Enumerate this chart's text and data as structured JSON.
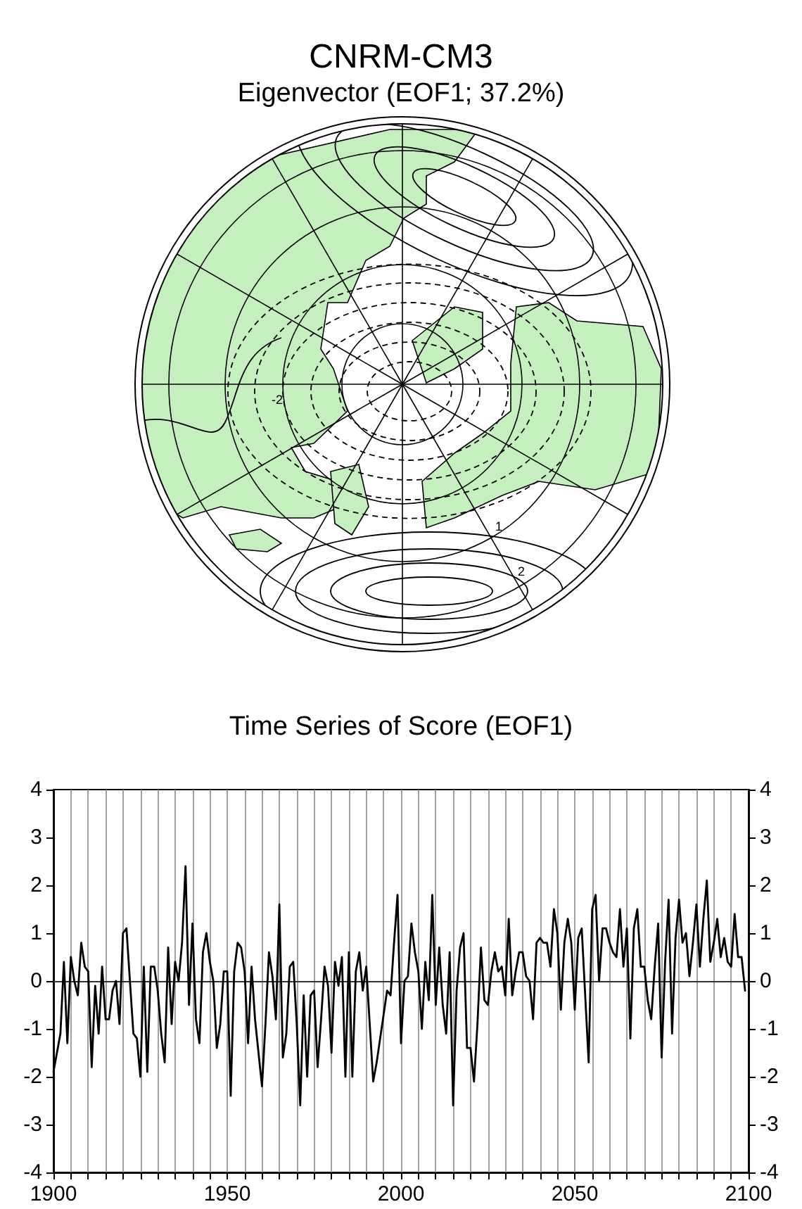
{
  "chart_data": [
    {
      "type": "other",
      "title": "CNRM-CM3",
      "subtitle": "Eigenvector (EOF1; 37.2%)",
      "annotations": [
        "-2",
        "1",
        "2"
      ]
    },
    {
      "type": "line",
      "title": "Time Series of Score (EOF1)",
      "x": [
        1900,
        1901,
        1902,
        1903,
        1904,
        1905,
        1906,
        1907,
        1908,
        1909,
        1910,
        1911,
        1912,
        1913,
        1914,
        1915,
        1916,
        1917,
        1918,
        1919,
        1920,
        1921,
        1922,
        1923,
        1924,
        1925,
        1926,
        1927,
        1928,
        1929,
        1930,
        1931,
        1932,
        1933,
        1934,
        1935,
        1936,
        1937,
        1938,
        1939,
        1940,
        1941,
        1942,
        1943,
        1944,
        1945,
        1946,
        1947,
        1948,
        1949,
        1950,
        1951,
        1952,
        1953,
        1954,
        1955,
        1956,
        1957,
        1958,
        1959,
        1960,
        1961,
        1962,
        1963,
        1964,
        1965,
        1966,
        1967,
        1968,
        1969,
        1970,
        1971,
        1972,
        1973,
        1974,
        1975,
        1976,
        1977,
        1978,
        1979,
        1980,
        1981,
        1982,
        1983,
        1984,
        1985,
        1986,
        1987,
        1988,
        1989,
        1990,
        1991,
        1992,
        1993,
        1994,
        1995,
        1996,
        1997,
        1998,
        1999,
        2000,
        2001,
        2002,
        2003,
        2004,
        2005,
        2006,
        2007,
        2008,
        2009,
        2010,
        2011,
        2012,
        2013,
        2014,
        2015,
        2016,
        2017,
        2018,
        2019,
        2020,
        2021,
        2022,
        2023,
        2024,
        2025,
        2026,
        2027,
        2028,
        2029,
        2030,
        2031,
        2032,
        2033,
        2034,
        2035,
        2036,
        2037,
        2038,
        2039,
        2040,
        2041,
        2042,
        2043,
        2044,
        2045,
        2046,
        2047,
        2048,
        2049,
        2050,
        2051,
        2052,
        2053,
        2054,
        2055,
        2056,
        2057,
        2058,
        2059,
        2060,
        2061,
        2062,
        2063,
        2064,
        2065,
        2066,
        2067,
        2068,
        2069,
        2070,
        2071,
        2072,
        2073,
        2074,
        2075,
        2076,
        2077,
        2078,
        2079,
        2080,
        2081,
        2082,
        2083,
        2084,
        2085,
        2086,
        2087,
        2088,
        2089,
        2090,
        2091,
        2092,
        2093,
        2094,
        2095,
        2096,
        2097,
        2098,
        2099
      ],
      "series": [
        {
          "color": "#000000",
          "values": [
            -1.9,
            -1.5,
            -1.1,
            0.4,
            -1.3,
            0.5,
            0,
            -0.3,
            0.8,
            0.3,
            0.2,
            -1.8,
            -0.1,
            -1.1,
            0.3,
            -0.8,
            -0.8,
            -0.2,
            0,
            -0.9,
            1.0,
            1.1,
            0,
            -1.1,
            -1.2,
            -2.0,
            0.3,
            -1.9,
            0.3,
            0.3,
            -0.2,
            -1.1,
            -1.7,
            0.7,
            -0.9,
            0.4,
            0,
            0.8,
            2.4,
            -0.5,
            1.2,
            -0.8,
            -1.3,
            0.6,
            1.0,
            0.4,
            0,
            -1.4,
            -0.9,
            0.2,
            0.2,
            -2.4,
            0.2,
            0.8,
            0.7,
            0.2,
            -1.3,
            0.3,
            -0.8,
            -1.5,
            -2.2,
            -0.9,
            0.6,
            0.1,
            -0.8,
            1.6,
            -1.6,
            -1.1,
            0.3,
            0.4,
            -0.9,
            -2.6,
            -0.3,
            -2.0,
            -0.3,
            -0.2,
            -1.8,
            -0.8,
            0.3,
            -0.1,
            -1.5,
            0.4,
            -0.1,
            0.5,
            -2.0,
            0.6,
            -2.0,
            0.2,
            0.6,
            -0.2,
            0.3,
            -0.9,
            -2.1,
            -1.7,
            -1.2,
            -0.7,
            -0.2,
            -0.3,
            0.8,
            1.8,
            -1.3,
            0,
            0.1,
            1.2,
            0.6,
            0.2,
            -1.0,
            0.4,
            -0.4,
            1.8,
            -0.5,
            0.7,
            -0.5,
            -1.1,
            0.6,
            -2.6,
            -0.2,
            0.7,
            1.0,
            -1.4,
            -1.4,
            -2.1,
            -0.9,
            0.7,
            -0.4,
            -0.5,
            0.2,
            0.6,
            0.2,
            0.3,
            -0.3,
            1.3,
            -0.3,
            0.2,
            0.6,
            0.6,
            0.1,
            0,
            -0.8,
            0.8,
            0.9,
            0.8,
            0.8,
            0.3,
            1.5,
            1.0,
            -0.6,
            0.8,
            1.3,
            0.8,
            -0.6,
            0.9,
            1.1,
            -0.3,
            -1.7,
            1.5,
            1.8,
            0,
            1.1,
            1.1,
            0.8,
            0.6,
            0.5,
            1.5,
            0.3,
            1.1,
            -1.2,
            1.1,
            1.5,
            0.3,
            0.3,
            -0.4,
            -0.8,
            0.3,
            1.2,
            -1.6,
            0.4,
            1.7,
            -1.1,
            0.9,
            1.7,
            0.8,
            1.0,
            0.1,
            0.8,
            1.6,
            0.3,
            1.3,
            2.1,
            0.4,
            0.8,
            1.3,
            0.5,
            0.9,
            0.4,
            0.3,
            1.4,
            0.5,
            0.5,
            -0.2
          ]
        }
      ],
      "xlim": [
        1900,
        2100
      ],
      "xticks": [
        1900,
        {
          "value": 1905,
          "label": null
        },
        {
          "value": 1910,
          "label": null
        },
        {
          "value": 1915,
          "label": null
        },
        {
          "value": 1920,
          "label": null
        },
        {
          "value": 1925,
          "label": null
        },
        {
          "value": 1930,
          "label": null
        },
        {
          "value": 1935,
          "label": null
        },
        {
          "value": 1940,
          "label": null
        },
        {
          "value": 1945,
          "label": null
        },
        1950,
        {
          "value": 1955,
          "label": null
        },
        {
          "value": 1960,
          "label": null
        },
        {
          "value": 1965,
          "label": null
        },
        {
          "value": 1970,
          "label": null
        },
        {
          "value": 1975,
          "label": null
        },
        {
          "value": 1980,
          "label": null
        },
        {
          "value": 1985,
          "label": null
        },
        {
          "value": 1990,
          "label": null
        },
        {
          "value": 1995,
          "label": null
        },
        2000,
        {
          "value": 2005,
          "label": null
        },
        {
          "value": 2010,
          "label": null
        },
        {
          "value": 2015,
          "label": null
        },
        {
          "value": 2020,
          "label": null
        },
        {
          "value": 2025,
          "label": null
        },
        {
          "value": 2030,
          "label": null
        },
        {
          "value": 2035,
          "label": null
        },
        {
          "value": 2040,
          "label": null
        },
        {
          "value": 2045,
          "label": null
        },
        2050,
        {
          "value": 2055,
          "label": null
        },
        {
          "value": 2060,
          "label": null
        },
        {
          "value": 2065,
          "label": null
        },
        {
          "value": 2070,
          "label": null
        },
        {
          "value": 2075,
          "label": null
        },
        {
          "value": 2080,
          "label": null
        },
        {
          "value": 2085,
          "label": null
        },
        {
          "value": 2090,
          "label": null
        },
        {
          "value": 2095,
          "label": null
        },
        2100
      ],
      "ylim": [
        -4,
        4
      ],
      "yticks": [
        -4,
        -3,
        -2,
        -1,
        0,
        1,
        2,
        3,
        4
      ],
      "y2lim": [
        -4,
        4
      ],
      "y2ticks": [
        -4,
        -3,
        -2,
        -1,
        0,
        1,
        2,
        3,
        4
      ],
      "grid": "x",
      "ref_lines": [
        {
          "axis": "y",
          "value": 0
        }
      ],
      "marker": "none"
    }
  ]
}
